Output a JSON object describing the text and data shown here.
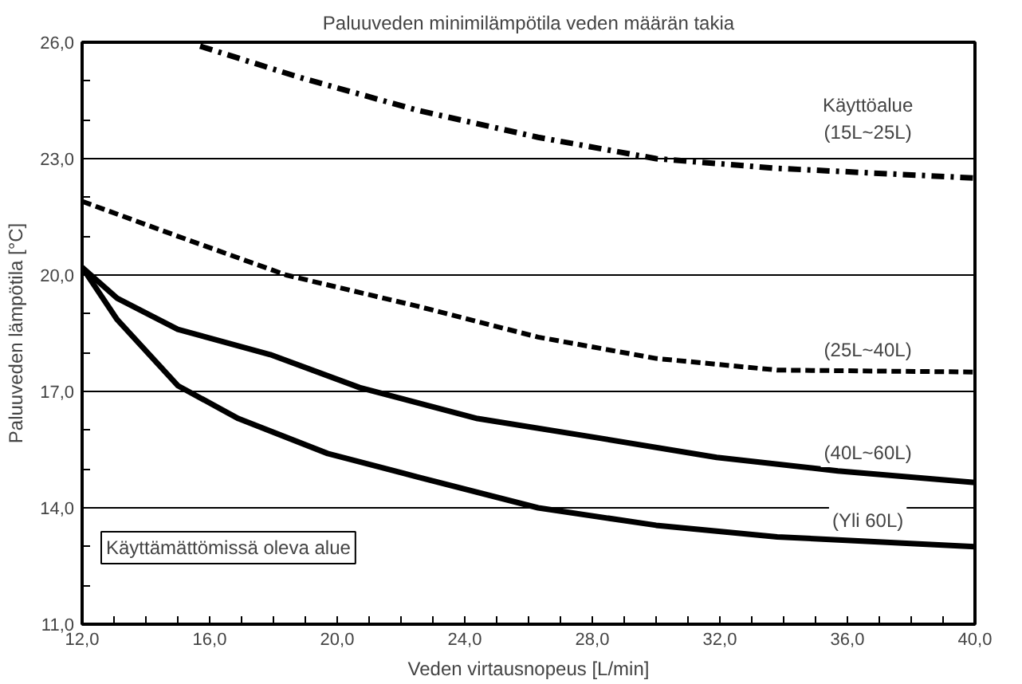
{
  "chart_data": {
    "type": "line",
    "title": "Paluuveden minimilämpötila veden määrän takia",
    "xlabel": "Veden virtausnopeus [L/min]",
    "ylabel": "Paluuveden lämpötila [°C]",
    "xlim": [
      12,
      40
    ],
    "ylim": [
      11,
      26
    ],
    "xticks": [
      {
        "value": 12,
        "label": "12,0"
      },
      {
        "value": 13,
        "label": null
      },
      {
        "value": 14,
        "label": null
      },
      {
        "value": 15,
        "label": null
      },
      {
        "value": 16,
        "label": "16,0"
      },
      {
        "value": 17,
        "label": null
      },
      {
        "value": 18,
        "label": null
      },
      {
        "value": 19,
        "label": null
      },
      {
        "value": 20,
        "label": "20,0"
      },
      {
        "value": 21,
        "label": null
      },
      {
        "value": 22,
        "label": null
      },
      {
        "value": 23,
        "label": null
      },
      {
        "value": 24,
        "label": "24,0"
      },
      {
        "value": 25,
        "label": null
      },
      {
        "value": 26,
        "label": null
      },
      {
        "value": 27,
        "label": null
      },
      {
        "value": 28,
        "label": "28,0"
      },
      {
        "value": 29,
        "label": null
      },
      {
        "value": 30,
        "label": null
      },
      {
        "value": 31,
        "label": null
      },
      {
        "value": 32,
        "label": "32,0"
      },
      {
        "value": 33,
        "label": null
      },
      {
        "value": 34,
        "label": null
      },
      {
        "value": 35,
        "label": null
      },
      {
        "value": 36,
        "label": "36,0"
      },
      {
        "value": 37,
        "label": null
      },
      {
        "value": 38,
        "label": null
      },
      {
        "value": 39,
        "label": null
      },
      {
        "value": 40,
        "label": "40,0"
      }
    ],
    "yticks": [
      {
        "value": 11,
        "label": "11,0"
      },
      {
        "value": 12,
        "label": null
      },
      {
        "value": 13,
        "label": null
      },
      {
        "value": 14,
        "label": "14,0"
      },
      {
        "value": 15,
        "label": null
      },
      {
        "value": 16,
        "label": null
      },
      {
        "value": 17,
        "label": "17,0"
      },
      {
        "value": 18,
        "label": null
      },
      {
        "value": 19,
        "label": null
      },
      {
        "value": 20,
        "label": "20,0"
      },
      {
        "value": 21,
        "label": null
      },
      {
        "value": 22,
        "label": null
      },
      {
        "value": 23,
        "label": "23,0"
      },
      {
        "value": 24,
        "label": null
      },
      {
        "value": 25,
        "label": null
      },
      {
        "value": 26,
        "label": "26,0"
      }
    ],
    "grid": "y",
    "marker": "none",
    "series": [
      {
        "name": "Käyttöalue\n(15L~25L)",
        "color": "#000000",
        "line_style": "dashdot",
        "x": [
          15.7,
          18.8,
          22.5,
          26.3,
          30.0,
          33.8,
          40.0
        ],
        "values": [
          25.9,
          25.1,
          24.25,
          23.55,
          23.0,
          22.75,
          22.5
        ]
      },
      {
        "name": "(25L~40L)",
        "color": "#000000",
        "line_style": "dashed",
        "x": [
          12.0,
          15.0,
          18.4,
          22.5,
          26.3,
          30.0,
          33.8,
          40.0
        ],
        "values": [
          21.9,
          21.0,
          20.0,
          19.2,
          18.4,
          17.85,
          17.55,
          17.5
        ]
      },
      {
        "name": "(40L~60L)",
        "color": "#000000",
        "line_style": "solid",
        "x": [
          12.0,
          13.1,
          15.0,
          17.9,
          20.7,
          24.4,
          28.2,
          31.9,
          35.7,
          40.0
        ],
        "values": [
          20.2,
          19.4,
          18.6,
          17.95,
          17.1,
          16.3,
          15.8,
          15.3,
          14.95,
          14.65
        ]
      },
      {
        "name": "(Yli 60L)",
        "color": "#000000",
        "line_style": "solid",
        "x": [
          12.0,
          13.1,
          15.0,
          16.9,
          19.7,
          22.5,
          26.3,
          30.0,
          33.8,
          40.0
        ],
        "values": [
          20.2,
          18.85,
          17.15,
          16.3,
          15.4,
          14.8,
          14.0,
          13.55,
          13.25,
          13.0
        ]
      }
    ],
    "annotations": [
      "Käyttämättömissä oleva alue"
    ]
  }
}
